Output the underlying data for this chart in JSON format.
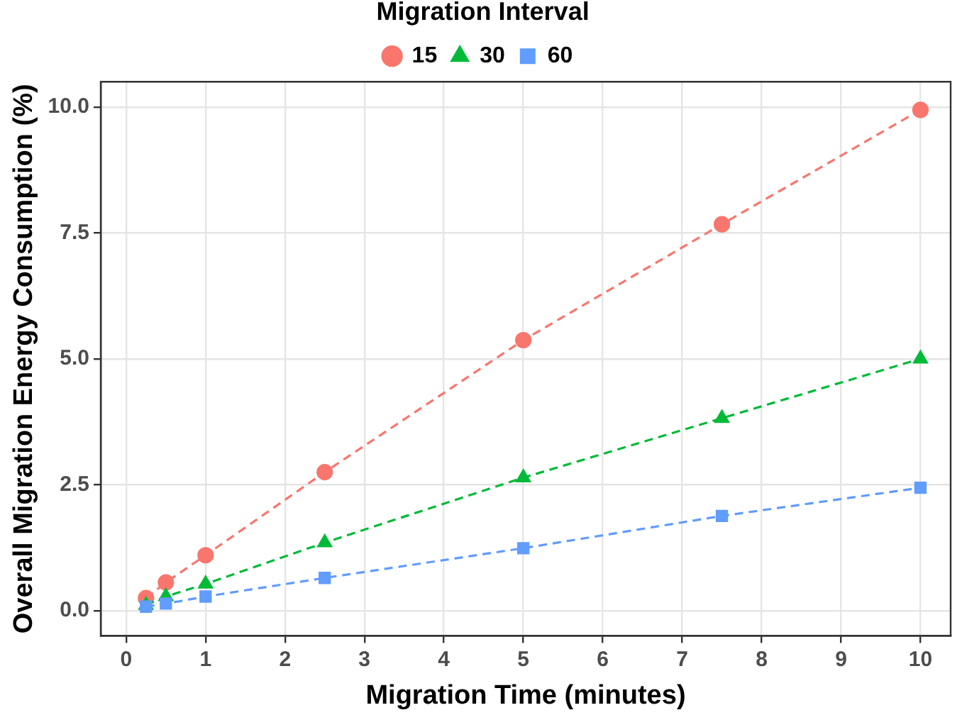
{
  "chart_data": {
    "type": "line",
    "xlabel": "Migration Time (minutes)",
    "ylabel": "Overall Migration Energy Consumption (%)",
    "legend_title": "Migration Interval",
    "legend": "top",
    "grid": true,
    "line_style": "dashed",
    "x": [
      0.25,
      0.5,
      1,
      2.5,
      5,
      7.5,
      10
    ],
    "xlim": [
      -0.32,
      10.38
    ],
    "xticks": [
      0,
      1,
      2,
      3,
      4,
      5,
      6,
      7,
      8,
      9,
      10
    ],
    "ylim": [
      -0.5,
      10.5
    ],
    "yticks": [
      {
        "value": 0,
        "label": "0.0"
      },
      {
        "value": 2.5,
        "label": "2.5"
      },
      {
        "value": 5,
        "label": "5.0"
      },
      {
        "value": 7.5,
        "label": "7.5"
      },
      {
        "value": 10,
        "label": "10.0"
      }
    ],
    "series": [
      {
        "name": "15",
        "color": "#f8766d",
        "marker": "circle",
        "values": [
          0.25,
          0.56,
          1.1,
          2.75,
          5.37,
          7.67,
          9.94
        ]
      },
      {
        "name": "30",
        "color": "#00ba38",
        "marker": "triangle",
        "values": [
          0.11,
          0.28,
          0.53,
          1.35,
          2.64,
          3.82,
          5.0
        ]
      },
      {
        "name": "60",
        "color": "#619cff",
        "marker": "square",
        "values": [
          0.08,
          0.14,
          0.28,
          0.65,
          1.24,
          1.88,
          2.44
        ]
      }
    ]
  }
}
